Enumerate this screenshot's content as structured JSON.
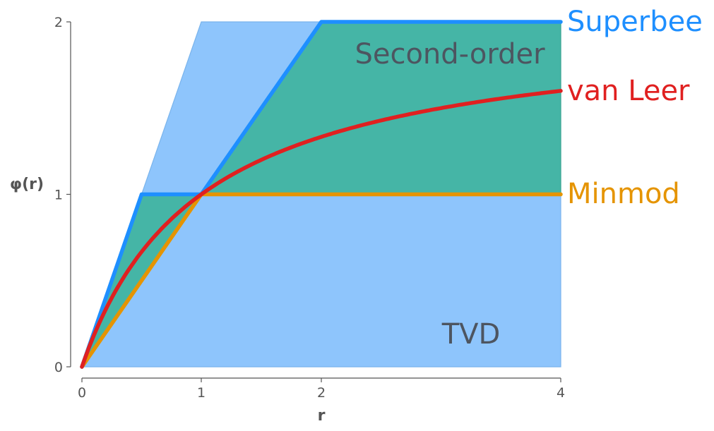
{
  "chart_data": {
    "type": "area",
    "xlabel": "r",
    "ylabel": "φ(r)",
    "x_ticks": [
      0,
      1,
      2,
      4
    ],
    "y_ticks": [
      0,
      1,
      2
    ],
    "xlim": [
      0,
      4
    ],
    "ylim": [
      0,
      2
    ],
    "grid": false,
    "regions": [
      {
        "name": "TVD",
        "color": "#8ec5fc",
        "x": [
          0,
          1,
          4,
          4,
          0
        ],
        "y": [
          0,
          2,
          2,
          0,
          0
        ]
      },
      {
        "name": "Second-order",
        "color": "#45b5a6",
        "x": [
          0,
          0.5,
          1,
          2,
          4,
          4,
          1,
          0
        ],
        "y": [
          0,
          1,
          1,
          2,
          2,
          1,
          1,
          0
        ]
      }
    ],
    "series": [
      {
        "name": "Superbee",
        "color": "#1e8fff",
        "x": [
          0,
          0.5,
          1,
          2,
          4
        ],
        "y": [
          0,
          1,
          1,
          2,
          2
        ]
      },
      {
        "name": "Minmod",
        "color": "#e59400",
        "x": [
          0,
          1,
          4
        ],
        "y": [
          0,
          1,
          1
        ]
      },
      {
        "name": "van Leer",
        "color": "#e02020",
        "formula": "(r + |r|) / (1 + |r|)",
        "x": [
          0,
          0.1,
          0.2,
          0.3,
          0.5,
          0.75,
          1,
          1.5,
          2,
          2.5,
          3,
          3.5,
          4
        ],
        "y": [
          0,
          0.182,
          0.333,
          0.462,
          0.667,
          0.857,
          1,
          1.2,
          1.333,
          1.429,
          1.5,
          1.556,
          1.6
        ]
      }
    ]
  }
}
